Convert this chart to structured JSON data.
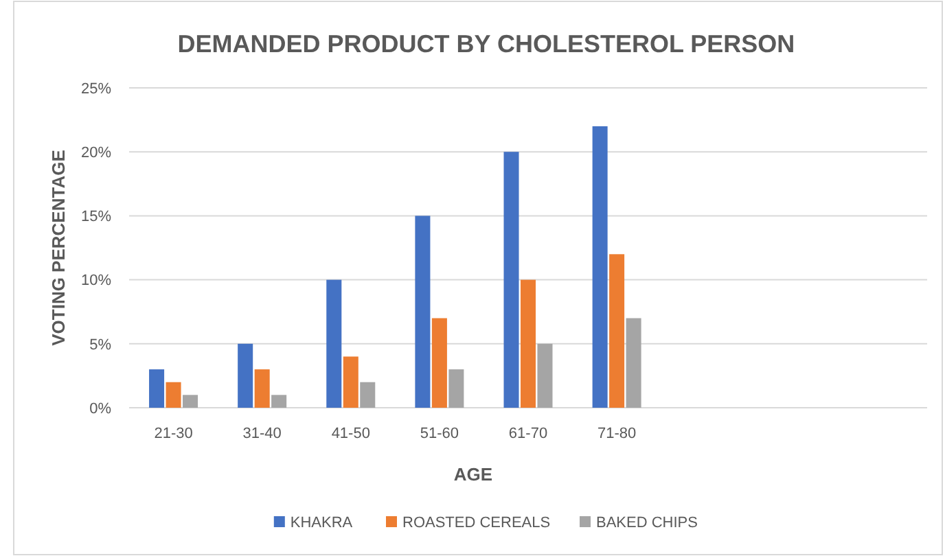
{
  "chart_data": {
    "type": "bar",
    "title": "DEMANDED PRODUCT BY CHOLESTEROL PERSON",
    "xlabel": "AGE",
    "ylabel": "VOTING PERCENTAGE",
    "categories": [
      "21-30",
      "31-40",
      "41-50",
      "51-60",
      "61-70",
      "71-80",
      null,
      null,
      null
    ],
    "series": [
      {
        "name": "KHAKRA",
        "color": "#4472c4",
        "values": [
          3,
          5,
          10,
          15,
          20,
          22,
          null,
          null,
          null
        ]
      },
      {
        "name": "ROASTED CEREALS",
        "color": "#ed7d31",
        "values": [
          2,
          3,
          4,
          7,
          10,
          12,
          null,
          null,
          null
        ]
      },
      {
        "name": "BAKED CHIPS",
        "color": "#a5a5a5",
        "values": [
          1,
          1,
          2,
          3,
          5,
          7,
          null,
          null,
          null
        ]
      }
    ],
    "ylim": [
      0,
      25
    ],
    "yticks": [
      {
        "value": 0,
        "label": "0%"
      },
      {
        "value": 5,
        "label": "5%"
      },
      {
        "value": 10,
        "label": "10%"
      },
      {
        "value": 15,
        "label": "15%"
      },
      {
        "value": 20,
        "label": "20%"
      },
      {
        "value": 25,
        "label": "25%"
      }
    ],
    "grid": "y",
    "legend": "bottom"
  }
}
